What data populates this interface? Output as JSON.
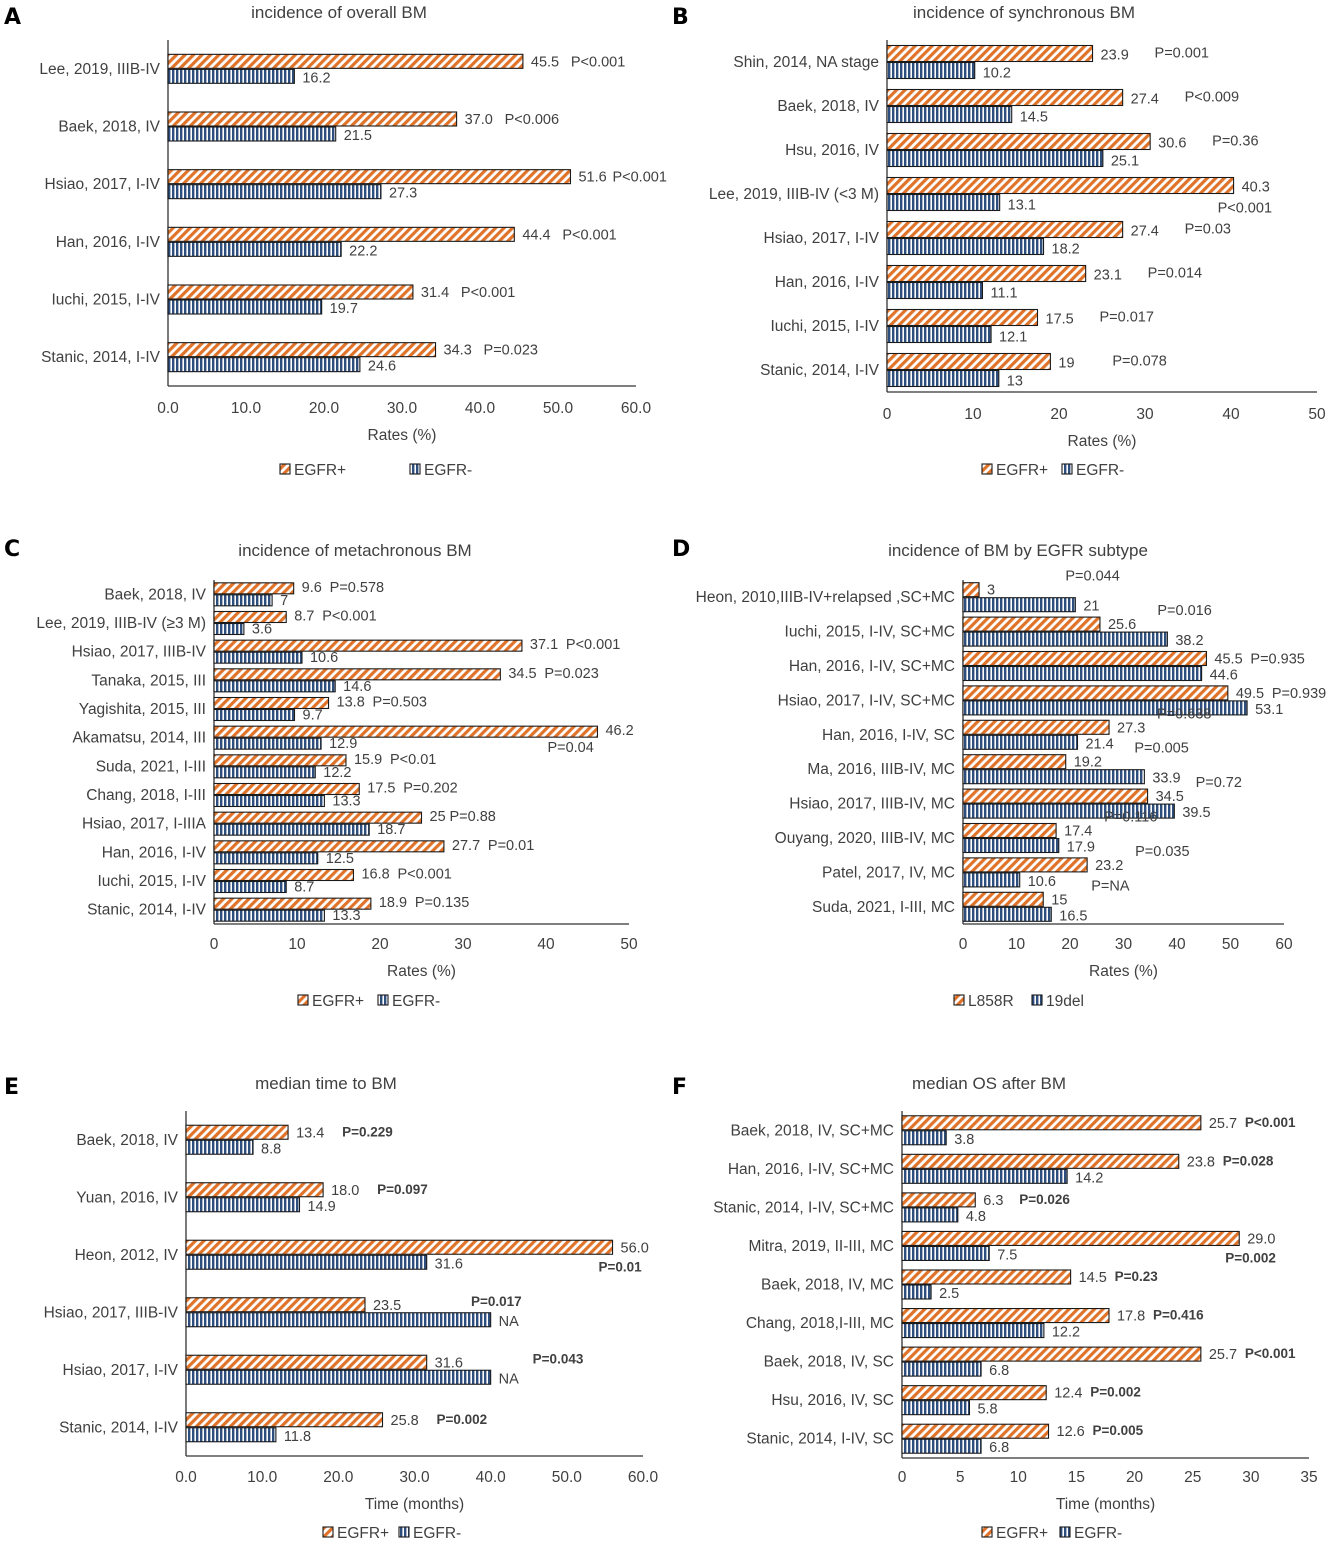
{
  "colors": {
    "s0": "#e0732a",
    "s1": "#2e4e7e",
    "text": "#404040",
    "axis": "#333333"
  },
  "chart_data": [
    {
      "panel": "A",
      "type": "bar",
      "orientation": "horizontal",
      "title": "incidence of overall BM",
      "xlabel": "Rates (%)",
      "xlim": [
        0,
        60
      ],
      "ticks": [
        "0.0",
        "10.0",
        "20.0",
        "30.0",
        "40.0",
        "50.0",
        "60.0"
      ],
      "tick_values": [
        0,
        10,
        20,
        30,
        40,
        50,
        60
      ],
      "legend": [
        "EGFR+",
        "EGFR-"
      ],
      "categories": [
        "Lee, 2019, IIIB-IV",
        "Baek, 2018, IV",
        "Hsiao, 2017, I-IV",
        "Han, 2016, I-IV",
        "Iuchi, 2015, I-IV",
        "Stanic, 2014, I-IV"
      ],
      "series": [
        {
          "name": "EGFR+",
          "values": [
            45.5,
            37.0,
            51.6,
            44.4,
            31.4,
            34.3
          ],
          "labels": [
            "45.5",
            "37.0",
            "51.6",
            "44.4",
            "31.4",
            "34.3"
          ]
        },
        {
          "name": "EGFR-",
          "values": [
            16.2,
            21.5,
            27.3,
            22.2,
            19.7,
            24.6
          ],
          "labels": [
            "16.2",
            "21.5",
            "27.3",
            "22.2",
            "19.7",
            "24.6"
          ]
        }
      ],
      "pvalues": [
        "P<0.001",
        "P<0.006",
        "P<0.001",
        "P<0.001",
        "P<0.001",
        "P=0.023"
      ]
    },
    {
      "panel": "B",
      "type": "bar",
      "orientation": "horizontal",
      "title": "incidence of synchronous BM",
      "xlabel": "Rates (%)",
      "xlim": [
        0,
        50
      ],
      "ticks": [
        "0",
        "10",
        "20",
        "30",
        "40",
        "50"
      ],
      "tick_values": [
        0,
        10,
        20,
        30,
        40,
        50
      ],
      "legend": [
        "EGFR+",
        "EGFR-"
      ],
      "categories": [
        "Shin, 2014, NA stage",
        "Baek, 2018, IV",
        "Hsu, 2016, IV",
        "Lee, 2019, IIIB-IV (<3 M)",
        "Hsiao, 2017, I-IV",
        "Han, 2016, I-IV",
        "Iuchi, 2015, I-IV",
        "Stanic, 2014, I-IV"
      ],
      "series": [
        {
          "name": "EGFR+",
          "values": [
            23.9,
            27.4,
            30.6,
            40.3,
            27.4,
            23.1,
            17.5,
            19
          ],
          "labels": [
            "23.9",
            "27.4",
            "30.6",
            "40.3",
            "27.4",
            "23.1",
            "17.5",
            "19"
          ]
        },
        {
          "name": "EGFR-",
          "values": [
            10.2,
            14.5,
            25.1,
            13.1,
            18.2,
            11.1,
            12.1,
            13
          ],
          "labels": [
            "10.2",
            "14.5",
            "25.1",
            "13.1",
            "18.2",
            "11.1",
            "12.1",
            "13"
          ]
        }
      ],
      "pvalues": [
        "P=0.001",
        "P<0.009",
        "P=0.36",
        "P<0.001",
        "P=0.03",
        "P=0.014",
        "P=0.017",
        "P=0.078"
      ]
    },
    {
      "panel": "C",
      "type": "bar",
      "orientation": "horizontal",
      "title": "incidence of metachronous BM",
      "xlabel": "Rates (%)",
      "xlim": [
        0,
        50
      ],
      "ticks": [
        "0",
        "10",
        "20",
        "30",
        "40",
        "50"
      ],
      "tick_values": [
        0,
        10,
        20,
        30,
        40,
        50
      ],
      "legend": [
        "EGFR+",
        "EGFR-"
      ],
      "categories": [
        "Baek, 2018, IV",
        "Lee, 2019, IIIB-IV (≥3 M)",
        "Hsiao, 2017, IIIB-IV",
        "Tanaka, 2015, III",
        "Yagishita, 2015, III",
        "Akamatsu, 2014, III",
        "Suda, 2021, I-III",
        "Chang, 2018, I-III",
        "Hsiao, 2017, I-IIIA",
        "Han, 2016, I-IV",
        "Iuchi, 2015, I-IV",
        "Stanic, 2014, I-IV"
      ],
      "series": [
        {
          "name": "EGFR+",
          "values": [
            9.6,
            8.7,
            37.1,
            34.5,
            13.8,
            46.2,
            15.9,
            17.5,
            25,
            27.7,
            16.8,
            18.9
          ],
          "labels": [
            "9.6",
            "8.7",
            "37.1",
            "34.5",
            "13.8",
            "46.2",
            "15.9",
            "17.5",
            "25",
            "27.7",
            "16.8",
            "18.9"
          ]
        },
        {
          "name": "EGFR-",
          "values": [
            7,
            3.6,
            10.6,
            14.6,
            9.7,
            12.9,
            12.2,
            13.3,
            18.7,
            12.5,
            8.7,
            13.3
          ],
          "labels": [
            "7",
            "3.6",
            "10.6",
            "14.6",
            "9.7",
            "12.9",
            "12.2",
            "13.3",
            "18.7",
            "12.5",
            "8.7",
            "13.3"
          ]
        }
      ],
      "pvalues": [
        "P=0.578",
        "P<0.001",
        "P<0.001",
        "P=0.023",
        "P=0.503",
        "P=0.04",
        "P<0.01",
        "P=0.202",
        "P=0.88",
        "P=0.01",
        "P<0.001",
        "P=0.135"
      ]
    },
    {
      "panel": "D",
      "type": "bar",
      "orientation": "horizontal",
      "title": "incidence of BM by EGFR subtype",
      "xlabel": "Rates (%)",
      "xlim": [
        0,
        60
      ],
      "ticks": [
        "0",
        "10",
        "20",
        "30",
        "40",
        "50",
        "60"
      ],
      "tick_values": [
        0,
        10,
        20,
        30,
        40,
        50,
        60
      ],
      "legend": [
        "L858R",
        "19del"
      ],
      "categories": [
        "Heon, 2010,IIIB-IV+relapsed ,SC+MC",
        "Iuchi, 2015, I-IV, SC+MC",
        "Han, 2016, I-IV, SC+MC",
        "Hsiao, 2017, I-IV, SC+MC",
        "Han, 2016, I-IV, SC",
        "Ma, 2016, IIIB-IV, MC",
        "Hsiao, 2017, IIIB-IV, MC",
        "Ouyang, 2020, IIIB-IV, MC",
        "Patel, 2017, IV, MC",
        "Suda, 2021, I-III, MC"
      ],
      "series": [
        {
          "name": "L858R",
          "values": [
            3,
            25.6,
            45.5,
            49.5,
            27.3,
            19.2,
            34.5,
            17.4,
            23.2,
            15
          ],
          "labels": [
            "3",
            "25.6",
            "45.5",
            "49.5",
            "27.3",
            "19.2",
            "34.5",
            "17.4",
            "23.2",
            "15"
          ]
        },
        {
          "name": "19del",
          "values": [
            21,
            38.2,
            44.6,
            53.1,
            21.4,
            33.9,
            39.5,
            17.9,
            10.6,
            16.5
          ],
          "labels": [
            "21",
            "38.2",
            "44.6",
            "53.1",
            "21.4",
            "33.9",
            "39.5",
            "17.9",
            "10.6",
            "16.5"
          ]
        }
      ],
      "pvalues": [
        "P=0.044",
        "P=0.016",
        "P=0.935",
        "P=0.939",
        "P=0.638",
        "P=0.005",
        "P=0.72",
        "P=0.116",
        "P=0.035",
        "P=NA"
      ]
    },
    {
      "panel": "E",
      "type": "bar",
      "orientation": "horizontal",
      "title": "median time to BM",
      "xlabel": "Time (months)",
      "xlim": [
        0,
        60
      ],
      "ticks": [
        "0.0",
        "10.0",
        "20.0",
        "30.0",
        "40.0",
        "50.0",
        "60.0"
      ],
      "tick_values": [
        0,
        10,
        20,
        30,
        40,
        50,
        60
      ],
      "legend": [
        "EGFR+",
        "EGFR-"
      ],
      "categories": [
        "Baek, 2018, IV",
        "Yuan, 2016, IV",
        "Heon, 2012, IV",
        "Hsiao, 2017, IIIB-IV",
        "Hsiao, 2017, I-IV",
        "Stanic, 2014, I-IV"
      ],
      "series": [
        {
          "name": "EGFR+",
          "values": [
            13.4,
            18.0,
            56.0,
            23.5,
            31.6,
            25.8
          ],
          "labels": [
            "13.4",
            "18.0",
            "56.0",
            "23.5",
            "31.6",
            "25.8"
          ]
        },
        {
          "name": "EGFR-",
          "values": [
            8.8,
            14.9,
            31.6,
            40,
            40,
            11.8
          ],
          "labels": [
            "8.8",
            "14.9",
            "31.6",
            "NA",
            "NA",
            "11.8"
          ]
        }
      ],
      "pvalues": [
        "P=0.229",
        "P=0.097",
        "P=0.01",
        "P=0.017",
        "P=0.043",
        "P=0.002"
      ]
    },
    {
      "panel": "F",
      "type": "bar",
      "orientation": "horizontal",
      "title": "median OS after BM",
      "xlabel": "Time (months)",
      "xlim": [
        0,
        35
      ],
      "ticks": [
        "0",
        "5",
        "10",
        "15",
        "20",
        "25",
        "30",
        "35"
      ],
      "tick_values": [
        0,
        5,
        10,
        15,
        20,
        25,
        30,
        35
      ],
      "legend": [
        "EGFR+",
        "EGFR-"
      ],
      "categories": [
        "Baek, 2018, IV, SC+MC",
        "Han, 2016, I-IV, SC+MC",
        "Stanic, 2014, I-IV, SC+MC",
        "Mitra, 2019,  II-III, MC",
        "Baek, 2018, IV, MC",
        "Chang, 2018,I-III, MC",
        "Baek, 2018, IV, SC",
        "Hsu, 2016, IV, SC",
        "Stanic, 2014, I-IV, SC"
      ],
      "series": [
        {
          "name": "EGFR+",
          "values": [
            25.7,
            23.8,
            6.3,
            29.0,
            14.5,
            17.8,
            25.7,
            12.4,
            12.6
          ],
          "labels": [
            "25.7",
            "23.8",
            "6.3",
            "29.0",
            "14.5",
            "17.8",
            "25.7",
            "12.4",
            "12.6"
          ]
        },
        {
          "name": "EGFR-",
          "values": [
            3.8,
            14.2,
            4.8,
            7.5,
            2.5,
            12.2,
            6.8,
            5.8,
            6.8
          ],
          "labels": [
            "3.8",
            "14.2",
            "4.8",
            "7.5",
            "2.5",
            "12.2",
            "6.8",
            "5.8",
            "6.8"
          ]
        }
      ],
      "pvalues": [
        "P<0.001",
        "P=0.028",
        "P=0.026",
        "P=0.002",
        "P=0.23",
        "P=0.416",
        "P<0.001",
        "P=0.002",
        "P=0.005"
      ]
    }
  ]
}
